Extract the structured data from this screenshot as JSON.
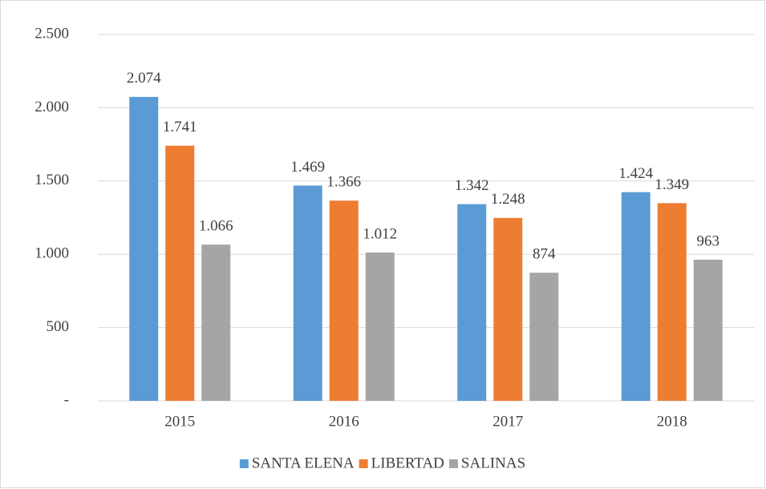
{
  "chart_data": {
    "type": "bar",
    "categories": [
      "2015",
      "2016",
      "2017",
      "2018"
    ],
    "series": [
      {
        "name": "SANTA ELENA",
        "color": "#5b9bd5",
        "values": [
          2074,
          1469,
          1342,
          1424
        ],
        "value_labels": [
          "2.074",
          "1.469",
          "1.342",
          "1.424"
        ]
      },
      {
        "name": "LIBERTAD",
        "color": "#ed7d31",
        "values": [
          1741,
          1366,
          1248,
          1349
        ],
        "value_labels": [
          "1.741",
          "1.366",
          "1.248",
          "1.349"
        ]
      },
      {
        "name": "SALINAS",
        "color": "#a5a5a5",
        "values": [
          1066,
          1012,
          874,
          963
        ],
        "value_labels": [
          "1.066",
          "1.012",
          "874",
          "963"
        ]
      }
    ],
    "ylim": [
      0,
      2500
    ],
    "yticks": [
      {
        "value": 0,
        "label": "-"
      },
      500,
      {
        "value": 1000,
        "label": "1.000"
      },
      {
        "value": 1500,
        "label": "1.500"
      },
      {
        "value": 2000,
        "label": "2.000"
      },
      {
        "value": 2500,
        "label": "2.500"
      }
    ],
    "grid": true,
    "legend": "bottom"
  }
}
